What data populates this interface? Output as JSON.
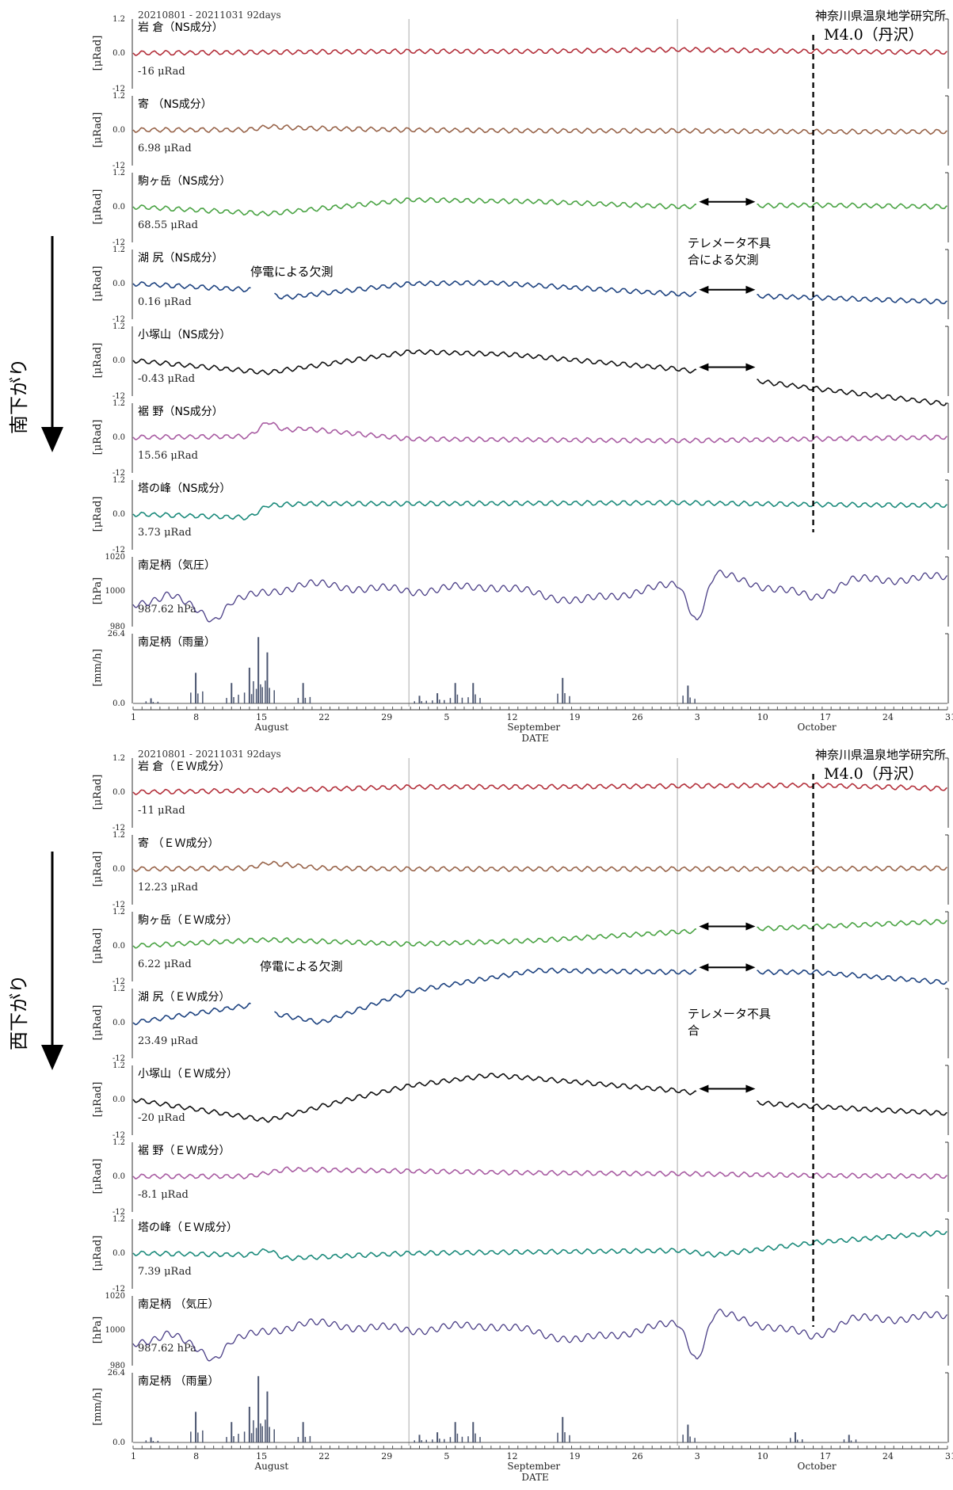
{
  "side_labels": [
    "南下がり",
    "西下がり"
  ],
  "chart_data": [
    {
      "type": "line",
      "date_range": "20210801 - 20211031 92days",
      "institute": "神奈川県温泉地学研究所",
      "event_label": "M4.0（丹沢）",
      "event_date": "2021-10-16",
      "x_axis": {
        "days": [
          "1",
          "8",
          "15",
          "22",
          "29",
          "5",
          "12",
          "19",
          "26",
          "3",
          "10",
          "17",
          "24",
          "31"
        ],
        "months": [
          "August",
          "September",
          "October"
        ],
        "label": "DATE"
      },
      "outage_label": "停電による欠測",
      "telemeter_label_lines": [
        "テレメータ不具",
        "合による欠測"
      ],
      "panels": [
        {
          "label": "岩 倉（NS成分）",
          "value": "-16 μRad",
          "unit": "[μRad]",
          "ticks": [
            "1.2",
            "0.0",
            "-12"
          ],
          "color": "#b3303b",
          "x": [
            "2021-08-01",
            "2021-08-16",
            "2021-09-01",
            "2021-09-15",
            "2021-10-01",
            "2021-10-16",
            "2021-10-31"
          ],
          "y": [
            0.0,
            0.05,
            0.1,
            0.1,
            0.2,
            0.1,
            0.05
          ]
        },
        {
          "label": "寄 （NS成分）",
          "value": "6.98 μRad",
          "unit": "[μRad]",
          "ticks": [
            "1.2",
            "0.0",
            "-12"
          ],
          "color": "#98644a",
          "x": [
            "2021-08-01",
            "2021-08-14",
            "2021-08-16",
            "2021-08-20",
            "2021-09-01",
            "2021-09-15",
            "2021-10-01",
            "2021-10-16",
            "2021-10-31"
          ],
          "y": [
            0.0,
            0.0,
            0.2,
            0.1,
            0.0,
            -0.05,
            -0.05,
            -0.1,
            -0.1
          ]
        },
        {
          "label": "駒ヶ岳（NS成分）",
          "value": "68.55 μRad",
          "unit": "[μRad]",
          "ticks": [
            "1.2",
            "0.0",
            "-12"
          ],
          "color": "#4aa344",
          "x": [
            "2021-08-01",
            "2021-08-16",
            "2021-09-01",
            "2021-09-15",
            "2021-10-01",
            "2021-10-16",
            "2021-10-31"
          ],
          "y": [
            0.0,
            -0.4,
            0.4,
            0.3,
            0.0,
            0.1,
            0.0
          ]
        },
        {
          "label": "湖 尻（NS成分）",
          "value": "0.16 μRad",
          "unit": "[μRad]",
          "ticks": [
            "1.2",
            "0.0",
            "-12"
          ],
          "color": "#1e4380",
          "x": [
            "2021-08-01",
            "2021-08-14",
            "2021-08-18",
            "2021-09-01",
            "2021-09-10",
            "2021-10-01",
            "2021-10-16",
            "2021-10-31"
          ],
          "y": [
            0.0,
            -0.35,
            -0.8,
            0.0,
            0.05,
            -0.6,
            -0.8,
            -1.05
          ]
        },
        {
          "label": "小塚山（NS成分）",
          "value": "-0.43 μRad",
          "unit": "[μRad]",
          "ticks": [
            "1.2",
            "0.0",
            "-12"
          ],
          "color": "#111111",
          "x": [
            "2021-08-01",
            "2021-08-16",
            "2021-09-01",
            "2021-09-12",
            "2021-10-01",
            "2021-10-10",
            "2021-10-16",
            "2021-10-31"
          ],
          "y": [
            0.0,
            -0.7,
            0.5,
            0.35,
            -0.5,
            -1.2,
            -1.6,
            -2.5
          ]
        },
        {
          "label": "裾 野（NS成分）",
          "value": "15.56 μRad",
          "unit": "[μRad]",
          "ticks": [
            "1.2",
            "0.0",
            "-12"
          ],
          "color": "#a85ca2",
          "x": [
            "2021-08-01",
            "2021-08-14",
            "2021-08-16",
            "2021-08-18",
            "2021-08-20",
            "2021-09-01",
            "2021-10-01",
            "2021-10-16",
            "2021-10-31"
          ],
          "y": [
            0.0,
            0.05,
            0.9,
            0.4,
            0.5,
            -0.1,
            -0.2,
            -0.1,
            0.0
          ]
        },
        {
          "label": "塔の峰（NS成分）",
          "value": "3.73 μRad",
          "unit": "[μRad]",
          "ticks": [
            "1.2",
            "0.0",
            "-12"
          ],
          "color": "#1b8a7b",
          "x": [
            "2021-08-01",
            "2021-08-14",
            "2021-08-16",
            "2021-08-20",
            "2021-09-01",
            "2021-10-01",
            "2021-10-16",
            "2021-10-31"
          ],
          "y": [
            0.0,
            -0.2,
            0.5,
            0.6,
            0.6,
            0.65,
            0.55,
            0.5
          ]
        },
        {
          "label": "南足柄（気圧）",
          "value": "987.62 hPa",
          "unit": "[hPa]",
          "ticks": [
            "1020",
            "1000",
            "980"
          ],
          "color": "#4a3e86",
          "x": [
            "2021-08-01",
            "2021-08-05",
            "2021-08-10",
            "2021-08-12",
            "2021-08-20",
            "2021-09-01",
            "2021-09-10",
            "2021-09-20",
            "2021-10-01",
            "2021-10-03",
            "2021-10-05",
            "2021-10-16",
            "2021-10-20",
            "2021-10-31"
          ],
          "y": [
            992,
            998,
            983,
            994,
            1004,
            1000,
            1003,
            994,
            1004,
            982,
            1010,
            996,
            1006,
            1008
          ]
        },
        {
          "label": "南足柄（雨量）",
          "value": "",
          "unit": "[mm/h]",
          "ticks": [
            "26.4",
            "",
            "0.0"
          ],
          "color": "#4b5570",
          "x": [
            "2021-08-03",
            "2021-08-08",
            "2021-08-12",
            "2021-08-14",
            "2021-08-15",
            "2021-08-16",
            "2021-08-20",
            "2021-09-02",
            "2021-09-04",
            "2021-09-06",
            "2021-09-08",
            "2021-09-18",
            "2021-10-02"
          ],
          "y": [
            2,
            12,
            8,
            14,
            26,
            20,
            8,
            3,
            4,
            8,
            8,
            10,
            7
          ]
        }
      ]
    },
    {
      "type": "line",
      "date_range": "20210801 - 20211031 92days",
      "institute": "神奈川県温泉地学研究所",
      "event_label": "M4.0（丹沢）",
      "event_date": "2021-10-16",
      "x_axis": {
        "days": [
          "1",
          "8",
          "15",
          "22",
          "29",
          "5",
          "12",
          "19",
          "26",
          "3",
          "10",
          "17",
          "24",
          "31"
        ],
        "months": [
          "August",
          "September",
          "October"
        ],
        "label": "DATE"
      },
      "outage_label": "停電による欠測",
      "telemeter_label_lines": [
        "テレメータ不具",
        "合"
      ],
      "panels": [
        {
          "label": "岩 倉（ＥＷ成分）",
          "value": "-11 μRad",
          "unit": "[μRad]",
          "ticks": [
            "1.2",
            "0.0",
            "-12"
          ],
          "color": "#b3303b",
          "x": [
            "2021-08-01",
            "2021-08-16",
            "2021-09-01",
            "2021-09-15",
            "2021-10-01",
            "2021-10-16",
            "2021-10-31"
          ],
          "y": [
            0.0,
            0.1,
            0.3,
            0.3,
            0.35,
            0.4,
            0.2
          ]
        },
        {
          "label": "寄 （ＥＷ成分）",
          "value": "12.23 μRad",
          "unit": "[μRad]",
          "ticks": [
            "1.2",
            "0.0",
            "-12"
          ],
          "color": "#98644a",
          "x": [
            "2021-08-01",
            "2021-08-14",
            "2021-08-16",
            "2021-08-22",
            "2021-09-01",
            "2021-10-01",
            "2021-10-16",
            "2021-10-31"
          ],
          "y": [
            0.0,
            0.05,
            0.35,
            0.05,
            0.0,
            0.0,
            0.0,
            0.05
          ]
        },
        {
          "label": "駒ヶ岳（ＥＷ成分）",
          "value": "6.22 μRad",
          "unit": "[μRad]",
          "ticks": [
            "1.2",
            "0.0",
            "-12"
          ],
          "color": "#4aa344",
          "x": [
            "2021-08-01",
            "2021-08-16",
            "2021-09-01",
            "2021-09-15",
            "2021-10-01",
            "2021-10-16",
            "2021-10-31"
          ],
          "y": [
            0.0,
            0.35,
            0.1,
            0.3,
            0.8,
            1.1,
            1.4
          ]
        },
        {
          "label": "湖 尻（ＥＷ成分）",
          "value": "23.49 μRad",
          "unit": "[μRad]",
          "ticks": [
            "1.2",
            "0.0",
            "-12"
          ],
          "color": "#1e4380",
          "x": [
            "2021-08-01",
            "2021-08-14",
            "2021-08-16",
            "2021-08-22",
            "2021-09-01",
            "2021-09-15",
            "2021-10-01",
            "2021-10-16",
            "2021-10-31"
          ],
          "y": [
            0.0,
            1.0,
            0.6,
            0.0,
            1.8,
            3.0,
            2.9,
            2.9,
            2.3
          ]
        },
        {
          "label": "小塚山（ＥＷ成分）",
          "value": "-20 μRad",
          "unit": "[μRad]",
          "ticks": [
            "1.2",
            "0.0",
            "-12"
          ],
          "color": "#111111",
          "x": [
            "2021-08-01",
            "2021-08-16",
            "2021-08-25",
            "2021-09-01",
            "2021-09-10",
            "2021-09-15",
            "2021-10-01",
            "2021-10-10",
            "2021-10-16",
            "2021-10-31"
          ],
          "y": [
            0.0,
            -1.2,
            0.0,
            0.8,
            1.4,
            1.2,
            0.5,
            -0.2,
            -0.4,
            -0.8
          ]
        },
        {
          "label": "裾 野（ＥＷ成分）",
          "value": "-8.1 μRad",
          "unit": "[μRad]",
          "ticks": [
            "1.2",
            "0.0",
            "-12"
          ],
          "color": "#a85ca2",
          "x": [
            "2021-08-01",
            "2021-08-14",
            "2021-08-18",
            "2021-09-01",
            "2021-09-15",
            "2021-10-01",
            "2021-10-16",
            "2021-10-31"
          ],
          "y": [
            0.0,
            0.0,
            0.4,
            0.3,
            0.2,
            0.15,
            0.05,
            0.0
          ]
        },
        {
          "label": "塔の峰（ＥＷ成分）",
          "value": "7.39 μRad",
          "unit": "[μRad]",
          "ticks": [
            "1.2",
            "0.0",
            "-12"
          ],
          "color": "#1b8a7b",
          "x": [
            "2021-08-01",
            "2021-08-14",
            "2021-08-16",
            "2021-08-18",
            "2021-09-01",
            "2021-10-01",
            "2021-10-05",
            "2021-10-16",
            "2021-10-31"
          ],
          "y": [
            0.0,
            -0.1,
            0.2,
            -0.3,
            0.0,
            0.15,
            -0.1,
            0.6,
            1.2
          ]
        },
        {
          "label": "南足柄 （気圧）",
          "value": "987.62 hPa",
          "unit": "[hPa]",
          "ticks": [
            "1020",
            "1000",
            "980"
          ],
          "color": "#4a3e86",
          "x": [
            "2021-08-01",
            "2021-08-05",
            "2021-08-10",
            "2021-08-12",
            "2021-08-20",
            "2021-09-01",
            "2021-09-10",
            "2021-09-20",
            "2021-10-01",
            "2021-10-03",
            "2021-10-05",
            "2021-10-16",
            "2021-10-20",
            "2021-10-31"
          ],
          "y": [
            992,
            998,
            983,
            994,
            1004,
            1000,
            1003,
            994,
            1004,
            982,
            1010,
            996,
            1006,
            1008
          ]
        },
        {
          "label": "南足柄 （雨量）",
          "value": "",
          "unit": "[mm/h]",
          "ticks": [
            "26.4",
            "",
            "0.0"
          ],
          "color": "#4b5570",
          "x": [
            "2021-08-03",
            "2021-08-08",
            "2021-08-12",
            "2021-08-14",
            "2021-08-15",
            "2021-08-16",
            "2021-08-20",
            "2021-09-02",
            "2021-09-04",
            "2021-09-06",
            "2021-09-08",
            "2021-09-18",
            "2021-10-02",
            "2021-10-14",
            "2021-10-20"
          ],
          "y": [
            2,
            12,
            8,
            14,
            26,
            20,
            8,
            3,
            4,
            8,
            8,
            10,
            7,
            4,
            3
          ]
        }
      ]
    }
  ]
}
